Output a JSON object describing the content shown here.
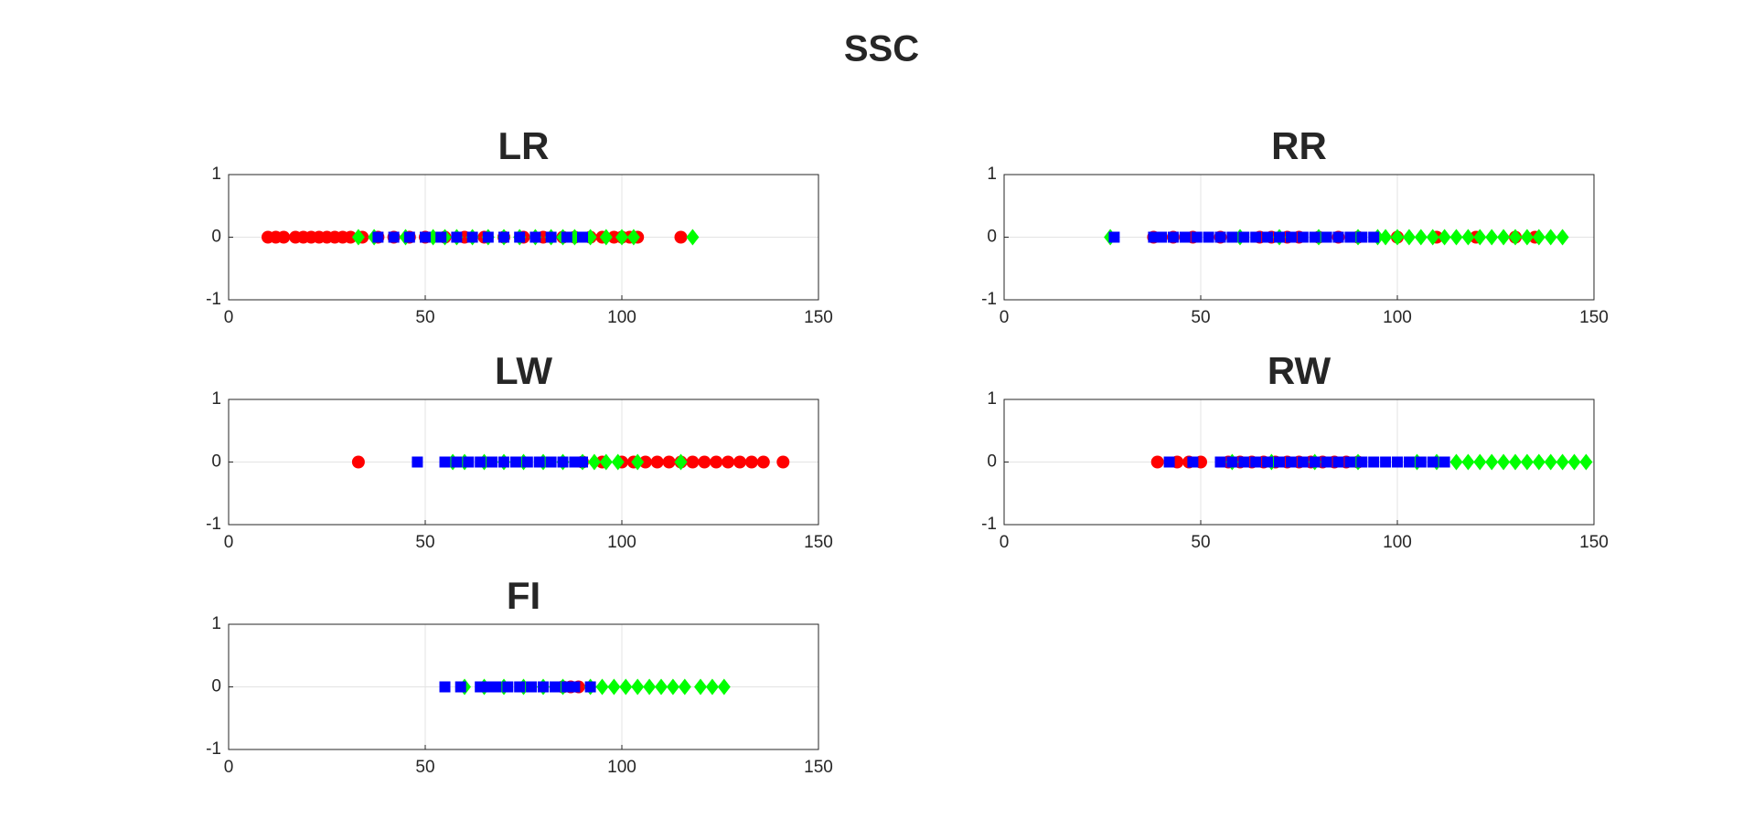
{
  "title": "SSC",
  "chart_data": [
    {
      "type": "scatter",
      "title": "LR",
      "xlim": [
        0,
        150
      ],
      "ylim": [
        -1,
        1
      ],
      "xticks": [
        0,
        50,
        100,
        150
      ],
      "yticks": [
        -1,
        0,
        1
      ],
      "grid": true,
      "series": [
        {
          "color": "#ff0000",
          "marker": "circle",
          "x": [
            10,
            12,
            14,
            17,
            19,
            21,
            23,
            25,
            27,
            29,
            31,
            34,
            38,
            42,
            46,
            50,
            55,
            60,
            65,
            70,
            75,
            80,
            85,
            88,
            92,
            95,
            98,
            100,
            102,
            104,
            115
          ],
          "values": [
            0,
            0,
            0,
            0,
            0,
            0,
            0,
            0,
            0,
            0,
            0,
            0,
            0,
            0,
            0,
            0,
            0,
            0,
            0,
            0,
            0,
            0,
            0,
            0,
            0,
            0,
            0,
            0,
            0,
            0,
            0
          ]
        },
        {
          "color": "#00ff00",
          "marker": "diamond",
          "x": [
            33,
            37,
            45,
            52,
            55,
            58,
            62,
            66,
            70,
            74,
            78,
            82,
            85,
            88,
            92,
            96,
            100,
            103,
            118
          ],
          "values": [
            0,
            0,
            0,
            0,
            0,
            0,
            0,
            0,
            0,
            0,
            0,
            0,
            0,
            0,
            0,
            0,
            0,
            0,
            0
          ]
        },
        {
          "color": "#0000ff",
          "marker": "square",
          "x": [
            38,
            42,
            46,
            50,
            54,
            58,
            62,
            66,
            70,
            74,
            78,
            82,
            86,
            90
          ],
          "values": [
            0,
            0,
            0,
            0,
            0,
            0,
            0,
            0,
            0,
            0,
            0,
            0,
            0,
            0
          ]
        }
      ]
    },
    {
      "type": "scatter",
      "title": "RR",
      "xlim": [
        0,
        150
      ],
      "ylim": [
        -1,
        1
      ],
      "xticks": [
        0,
        50,
        100,
        150
      ],
      "yticks": [
        -1,
        0,
        1
      ],
      "grid": true,
      "series": [
        {
          "color": "#ff0000",
          "marker": "circle",
          "x": [
            38,
            43,
            48,
            55,
            65,
            68,
            72,
            75,
            80,
            85,
            90,
            100,
            110,
            120,
            130,
            135
          ],
          "values": [
            0,
            0,
            0,
            0,
            0,
            0,
            0,
            0,
            0,
            0,
            0,
            0,
            0,
            0,
            0,
            0
          ]
        },
        {
          "color": "#00ff00",
          "marker": "diamond",
          "x": [
            27,
            60,
            70,
            80,
            90,
            95,
            97,
            100,
            103,
            106,
            109,
            112,
            115,
            118,
            121,
            124,
            127,
            130,
            133,
            136,
            139,
            142
          ],
          "values": [
            0,
            0,
            0,
            0,
            0,
            0,
            0,
            0,
            0,
            0,
            0,
            0,
            0,
            0,
            0,
            0,
            0,
            0,
            0,
            0,
            0,
            0
          ]
        },
        {
          "color": "#0000ff",
          "marker": "square",
          "x": [
            28,
            38,
            40,
            43,
            46,
            49,
            52,
            55,
            58,
            61,
            64,
            67,
            70,
            73,
            76,
            79,
            82,
            85,
            88,
            91,
            94
          ],
          "values": [
            0,
            0,
            0,
            0,
            0,
            0,
            0,
            0,
            0,
            0,
            0,
            0,
            0,
            0,
            0,
            0,
            0,
            0,
            0,
            0,
            0
          ]
        }
      ]
    },
    {
      "type": "scatter",
      "title": "LW",
      "xlim": [
        0,
        150
      ],
      "ylim": [
        -1,
        1
      ],
      "xticks": [
        0,
        50,
        100,
        150
      ],
      "yticks": [
        -1,
        0,
        1
      ],
      "grid": true,
      "series": [
        {
          "color": "#ff0000",
          "marker": "circle",
          "x": [
            33,
            90,
            95,
            100,
            103,
            106,
            109,
            112,
            115,
            118,
            121,
            124,
            127,
            130,
            133,
            136,
            141
          ],
          "values": [
            0,
            0,
            0,
            0,
            0,
            0,
            0,
            0,
            0,
            0,
            0,
            0,
            0,
            0,
            0,
            0,
            0
          ]
        },
        {
          "color": "#00ff00",
          "marker": "diamond",
          "x": [
            57,
            60,
            65,
            70,
            75,
            80,
            85,
            90,
            93,
            96,
            99,
            104,
            115
          ],
          "values": [
            0,
            0,
            0,
            0,
            0,
            0,
            0,
            0,
            0,
            0,
            0,
            0,
            0
          ]
        },
        {
          "color": "#0000ff",
          "marker": "square",
          "x": [
            48,
            55,
            58,
            61,
            64,
            67,
            70,
            73,
            76,
            79,
            82,
            85,
            88,
            90
          ],
          "values": [
            0,
            0,
            0,
            0,
            0,
            0,
            0,
            0,
            0,
            0,
            0,
            0,
            0,
            0
          ]
        }
      ]
    },
    {
      "type": "scatter",
      "title": "RW",
      "xlim": [
        0,
        150
      ],
      "ylim": [
        -1,
        1
      ],
      "xticks": [
        0,
        50,
        100,
        150
      ],
      "yticks": [
        -1,
        0,
        1
      ],
      "grid": true,
      "series": [
        {
          "color": "#ff0000",
          "marker": "circle",
          "x": [
            39,
            44,
            47,
            50,
            57,
            60,
            63,
            66,
            69,
            72,
            75,
            78,
            81,
            84,
            87,
            90
          ],
          "values": [
            0,
            0,
            0,
            0,
            0,
            0,
            0,
            0,
            0,
            0,
            0,
            0,
            0,
            0,
            0,
            0
          ]
        },
        {
          "color": "#00ff00",
          "marker": "diamond",
          "x": [
            58,
            68,
            79,
            90,
            105,
            110,
            115,
            118,
            121,
            124,
            127,
            130,
            133,
            136,
            139,
            142,
            145,
            148
          ],
          "values": [
            0,
            0,
            0,
            0,
            0,
            0,
            0,
            0,
            0,
            0,
            0,
            0,
            0,
            0,
            0,
            0,
            0,
            0
          ]
        },
        {
          "color": "#0000ff",
          "marker": "square",
          "x": [
            42,
            48,
            55,
            58,
            61,
            64,
            67,
            70,
            73,
            76,
            79,
            82,
            85,
            88,
            91,
            94,
            97,
            100,
            103,
            106,
            109,
            112
          ],
          "values": [
            0,
            0,
            0,
            0,
            0,
            0,
            0,
            0,
            0,
            0,
            0,
            0,
            0,
            0,
            0,
            0,
            0,
            0,
            0,
            0,
            0,
            0
          ]
        }
      ]
    },
    {
      "type": "scatter",
      "title": "FI",
      "xlim": [
        0,
        150
      ],
      "ylim": [
        -1,
        1
      ],
      "xticks": [
        0,
        50,
        100,
        150
      ],
      "yticks": [
        -1,
        0,
        1
      ],
      "grid": true,
      "series": [
        {
          "color": "#ff0000",
          "marker": "circle",
          "x": [
            85,
            87,
            89
          ],
          "values": [
            0,
            0,
            0
          ]
        },
        {
          "color": "#00ff00",
          "marker": "diamond",
          "x": [
            60,
            65,
            70,
            75,
            80,
            85,
            92,
            95,
            98,
            101,
            104,
            107,
            110,
            113,
            116,
            120,
            123,
            126
          ],
          "values": [
            0,
            0,
            0,
            0,
            0,
            0,
            0,
            0,
            0,
            0,
            0,
            0,
            0,
            0,
            0,
            0,
            0,
            0
          ]
        },
        {
          "color": "#0000ff",
          "marker": "square",
          "x": [
            55,
            59,
            64,
            66,
            68,
            71,
            74,
            77,
            80,
            83,
            86,
            88,
            92
          ],
          "values": [
            0,
            0,
            0,
            0,
            0,
            0,
            0,
            0,
            0,
            0,
            0,
            0,
            0
          ]
        }
      ]
    }
  ]
}
